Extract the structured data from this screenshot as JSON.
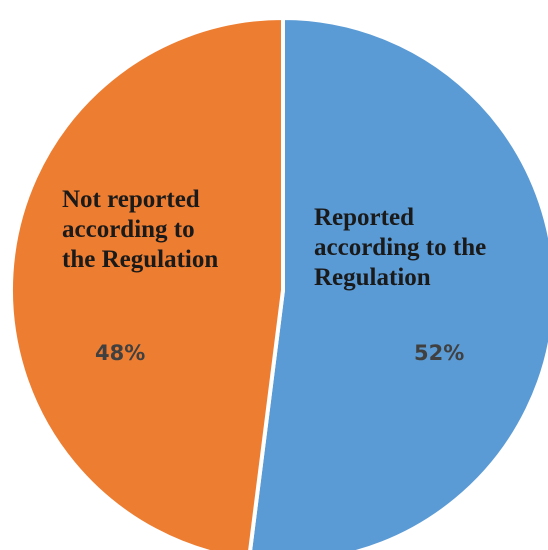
{
  "chart_data": {
    "type": "pie",
    "slices": [
      {
        "label": "Reported according to the Regulation",
        "value": 52,
        "display": "52%",
        "color": "#5b9bd5"
      },
      {
        "label": "Not reported according to the Regulation",
        "value": 48,
        "display": "48%",
        "color": "#ed7d31"
      }
    ],
    "start_direction": "top (12 o'clock)",
    "order": "clockwise",
    "legend": "none",
    "slice_border_color": "#ffffff"
  }
}
